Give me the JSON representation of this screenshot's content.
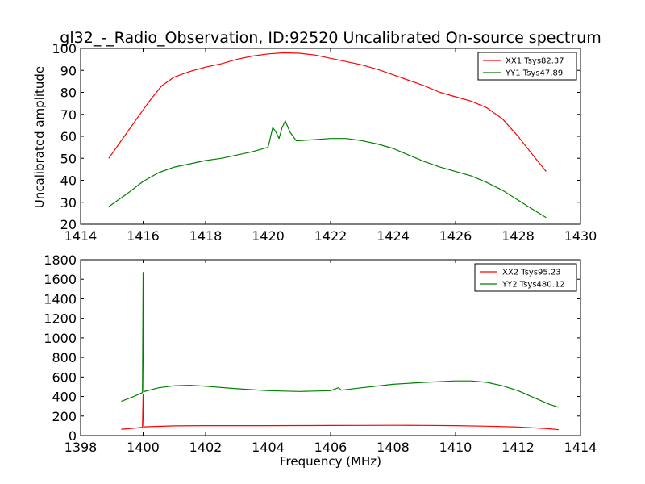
{
  "figure": {
    "title": "gl32_-_Radio_Observation, ID:92520 Uncalibrated On-source spectrum",
    "ylabel": "Uncalibrated amplitude",
    "xlabel": "Frequency (MHz)"
  },
  "chart_data": [
    {
      "type": "line",
      "title": "gl32_-_Radio_Observation, ID:92520 Uncalibrated On-source spectrum",
      "xlabel": "",
      "ylabel": "Uncalibrated amplitude",
      "xlim": [
        1414,
        1430
      ],
      "ylim": [
        20,
        100
      ],
      "xticks": [
        1414,
        1416,
        1418,
        1420,
        1422,
        1424,
        1426,
        1428,
        1430
      ],
      "yticks": [
        20,
        30,
        40,
        50,
        60,
        70,
        80,
        90,
        100
      ],
      "legend_position": "top-right",
      "series": [
        {
          "name": "XX1 Tsys82.37",
          "color": "#ff0000",
          "x": [
            1414.9,
            1415.3,
            1415.8,
            1416.2,
            1416.6,
            1417.0,
            1417.5,
            1418.0,
            1418.5,
            1419.0,
            1419.5,
            1420.0,
            1420.5,
            1421.0,
            1421.5,
            1422.0,
            1422.5,
            1423.0,
            1423.5,
            1424.0,
            1424.5,
            1425.0,
            1425.5,
            1426.0,
            1426.5,
            1427.0,
            1427.5,
            1428.0,
            1428.5,
            1428.9
          ],
          "y": [
            50,
            58,
            68,
            76,
            83,
            87,
            89.5,
            91.5,
            93,
            95,
            96.5,
            97.5,
            98,
            97.8,
            97,
            95.5,
            94,
            92.5,
            90.5,
            88,
            85.5,
            83,
            80,
            78,
            76,
            73,
            68,
            60,
            51,
            44
          ]
        },
        {
          "name": "YY1 Tsys47.89",
          "color": "#008000",
          "x": [
            1414.9,
            1415.5,
            1416.0,
            1416.5,
            1417.0,
            1417.5,
            1418.0,
            1418.5,
            1419.0,
            1419.5,
            1420.0,
            1420.15,
            1420.25,
            1420.35,
            1420.45,
            1420.55,
            1420.7,
            1420.9,
            1421.0,
            1421.5,
            1422.0,
            1422.5,
            1423.0,
            1423.5,
            1424.0,
            1424.5,
            1425.0,
            1425.5,
            1426.0,
            1426.5,
            1427.0,
            1427.5,
            1428.0,
            1428.5,
            1428.9
          ],
          "y": [
            28,
            34,
            39.5,
            43.5,
            46,
            47.5,
            49,
            50,
            51.5,
            53,
            55,
            64,
            62,
            59,
            64,
            67,
            62,
            58,
            58,
            58.5,
            59,
            59,
            58,
            56.5,
            54.5,
            51.5,
            48.5,
            46,
            44,
            42,
            39,
            35.5,
            31,
            26.5,
            23
          ]
        }
      ]
    },
    {
      "type": "line",
      "title": "",
      "xlabel": "Frequency (MHz)",
      "ylabel": "",
      "xlim": [
        1398,
        1414
      ],
      "ylim": [
        0,
        1800
      ],
      "xticks": [
        1398,
        1400,
        1402,
        1404,
        1406,
        1408,
        1410,
        1412,
        1414
      ],
      "yticks": [
        0,
        200,
        400,
        600,
        800,
        1000,
        1200,
        1400,
        1600,
        1800
      ],
      "legend_position": "top-right",
      "series": [
        {
          "name": "XX2 Tsys95.23",
          "color": "#ff0000",
          "x": [
            1399.3,
            1399.7,
            1399.98,
            1400.0,
            1400.02,
            1400.5,
            1401,
            1402,
            1403,
            1404,
            1405,
            1406,
            1407,
            1408,
            1409,
            1410,
            1411,
            1412,
            1413,
            1413.3
          ],
          "y": [
            65,
            75,
            85,
            420,
            90,
            95,
            100,
            102,
            102,
            102,
            103,
            104,
            105,
            106,
            105,
            102,
            97,
            88,
            70,
            60
          ]
        },
        {
          "name": "YY2 Tsys480.12",
          "color": "#008000",
          "x": [
            1399.3,
            1399.7,
            1399.98,
            1400.0,
            1400.02,
            1400.5,
            1401,
            1401.5,
            1402,
            1403,
            1404,
            1405,
            1406,
            1406.25,
            1406.35,
            1407,
            1408,
            1409,
            1410,
            1410.5,
            1411,
            1411.5,
            1412,
            1412.5,
            1413,
            1413.3
          ],
          "y": [
            350,
            400,
            440,
            1670,
            450,
            490,
            510,
            515,
            505,
            480,
            460,
            452,
            460,
            490,
            465,
            490,
            525,
            545,
            560,
            560,
            545,
            510,
            460,
            390,
            320,
            290
          ]
        }
      ]
    }
  ]
}
